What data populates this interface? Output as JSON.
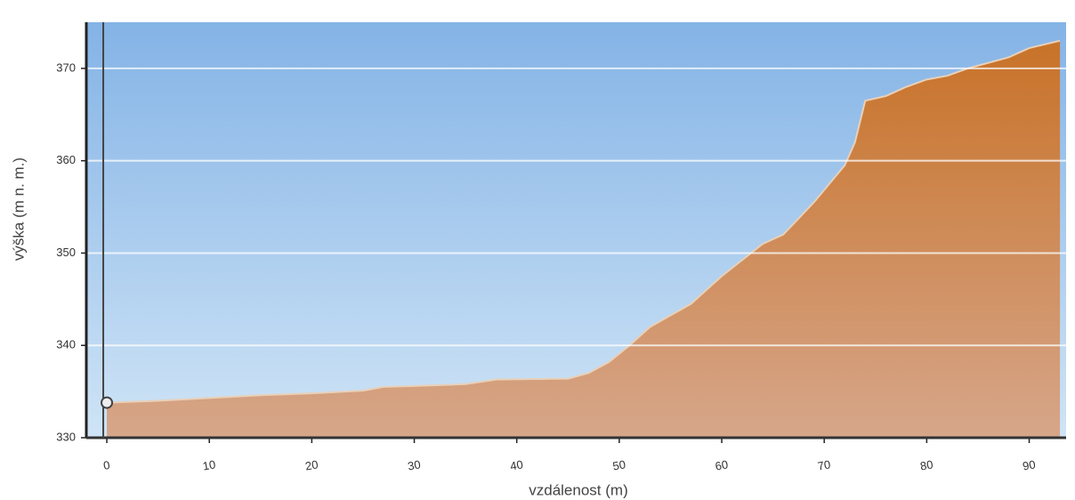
{
  "chart_data": {
    "type": "area",
    "xlabel": "vzdálenost (m)",
    "ylabel": "výška (m n. m.)",
    "x": [
      0,
      5,
      10,
      15,
      20,
      25,
      27,
      30,
      35,
      38,
      45,
      47,
      49,
      51,
      53,
      57,
      60,
      64,
      66,
      69,
      72,
      73,
      74,
      76,
      78,
      80,
      82,
      84,
      88,
      90,
      93
    ],
    "values": [
      333.8,
      334,
      334.3,
      334.6,
      334.8,
      335.1,
      335.5,
      335.6,
      335.8,
      336.3,
      336.4,
      337,
      338.2,
      340,
      342,
      344.5,
      347.5,
      351,
      352,
      355.5,
      359.5,
      362,
      366.5,
      367,
      368,
      368.8,
      369.2,
      370,
      371.2,
      372.2,
      373
    ],
    "color": "#c98242",
    "xlim": [
      -2,
      93.6
    ],
    "ylim": [
      330,
      375
    ],
    "xticks": [
      0,
      10,
      20,
      30,
      40,
      50,
      60,
      70,
      80,
      90
    ],
    "yticks": [
      330,
      340,
      350,
      360,
      370
    ],
    "grid": true
  }
}
